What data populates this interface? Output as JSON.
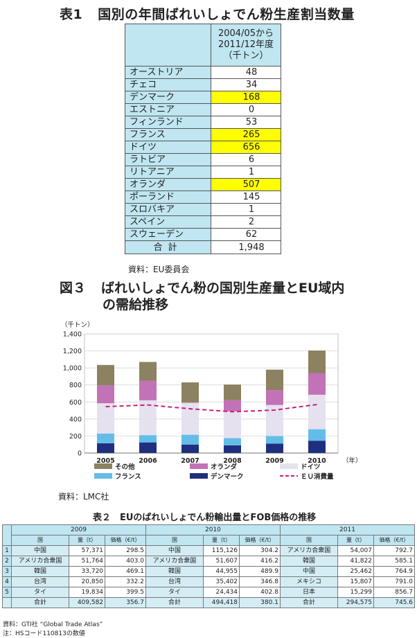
{
  "table1": {
    "number": "表1",
    "title": "国別の年間ばれいしょでん粉生産割当数量",
    "header": [
      "2004/05から",
      "2011/12年度",
      "（千トン）"
    ],
    "rows": [
      {
        "country": "オーストリア",
        "value": "48",
        "highlight": false
      },
      {
        "country": "チェコ",
        "value": "34",
        "highlight": false
      },
      {
        "country": "デンマーク",
        "value": "168",
        "highlight": true
      },
      {
        "country": "エストニア",
        "value": "0",
        "highlight": false
      },
      {
        "country": "フィンランド",
        "value": "53",
        "highlight": false
      },
      {
        "country": "フランス",
        "value": "265",
        "highlight": true
      },
      {
        "country": "ドイツ",
        "value": "656",
        "highlight": true
      },
      {
        "country": "ラトビア",
        "value": "6",
        "highlight": false
      },
      {
        "country": "リトアニア",
        "value": "1",
        "highlight": false
      },
      {
        "country": "オランダ",
        "value": "507",
        "highlight": true
      },
      {
        "country": "ポーランド",
        "value": "145",
        "highlight": false
      },
      {
        "country": "スロバキア",
        "value": "1",
        "highlight": false
      },
      {
        "country": "スペイン",
        "value": "2",
        "highlight": false
      },
      {
        "country": "スウェーデン",
        "value": "62",
        "highlight": false
      }
    ],
    "total_label": "合計",
    "total_value": "1,948",
    "source": "資料：EU委員会",
    "colors": {
      "header_bg": "#bfe6f1",
      "highlight": "#ffff00"
    }
  },
  "figure3": {
    "number": "図３",
    "title_line1": "ばれいしょでん粉の国別生産量とEU域内",
    "title_line2": "の需給推移",
    "source": "資料：LMC社"
  },
  "chart_data": {
    "type": "bar",
    "stacked": true,
    "categories": [
      "2005",
      "2006",
      "2007",
      "2008",
      "2009",
      "2010"
    ],
    "ylabel": "（千トン）",
    "xlabel": "（年）",
    "ylim": [
      0,
      1400
    ],
    "yticks": [
      "0",
      "200",
      "400",
      "600",
      "800",
      "1,000",
      "1,200",
      "1,400"
    ],
    "grid": true,
    "series": [
      {
        "name": "デンマーク",
        "color": "#1f2f7f",
        "values": [
          115,
          125,
          100,
          90,
          110,
          145
        ]
      },
      {
        "name": "フランス",
        "color": "#63bde8",
        "values": [
          115,
          85,
          115,
          85,
          90,
          135
        ]
      },
      {
        "name": "ドイツ",
        "color": "#e6e1ef",
        "values": [
          355,
          410,
          375,
          315,
          365,
          405
        ]
      },
      {
        "name": "オランダ",
        "color": "#c272b6",
        "values": [
          210,
          230,
          5,
          130,
          175,
          255
        ]
      },
      {
        "name": "その他",
        "color": "#8c8161",
        "values": [
          240,
          220,
          235,
          185,
          240,
          265
        ]
      }
    ],
    "line": {
      "name": "ＥＵ消費量",
      "color": "#cc1d7a",
      "values": [
        545,
        565,
        520,
        485,
        505,
        570
      ]
    },
    "legend": [
      {
        "name": "その他",
        "kind": "box",
        "color": "#8c8161"
      },
      {
        "name": "オランダ",
        "kind": "box",
        "color": "#c272b6"
      },
      {
        "name": "ドイツ",
        "kind": "box",
        "color": "#e6e1ef"
      },
      {
        "name": "フランス",
        "kind": "box",
        "color": "#63bde8"
      },
      {
        "name": "デンマーク",
        "kind": "box",
        "color": "#1f2f7f"
      },
      {
        "name": "ＥＵ消費量",
        "kind": "dash",
        "color": "#cc1d7a"
      }
    ]
  },
  "table2": {
    "title": "表２　EUのばれいしょでん粉輸出量とFOB価格の推移",
    "years": [
      "2009",
      "2010",
      "2011"
    ],
    "col_country": "国",
    "col_qty": "量（t）",
    "col_price": "価格（€/t）",
    "rows": [
      {
        "idx": "1",
        "y2009": [
          "中国",
          "57,371",
          "298.5"
        ],
        "y2010": [
          "中国",
          "115,126",
          "304.2"
        ],
        "y2011": [
          "アメリカ合衆国",
          "54,007",
          "792.7"
        ]
      },
      {
        "idx": "2",
        "y2009": [
          "アメリカ合衆国",
          "51,764",
          "403.0"
        ],
        "y2010": [
          "アメリカ合衆国",
          "51,607",
          "416.2"
        ],
        "y2011": [
          "韓国",
          "41,822",
          "585.1"
        ]
      },
      {
        "idx": "3",
        "y2009": [
          "韓国",
          "33,720",
          "469.1"
        ],
        "y2010": [
          "韓国",
          "44,955",
          "489.9"
        ],
        "y2011": [
          "中国",
          "25,462",
          "764.9"
        ]
      },
      {
        "idx": "4",
        "y2009": [
          "台湾",
          "20,850",
          "332.2"
        ],
        "y2010": [
          "台湾",
          "35,402",
          "346.8"
        ],
        "y2011": [
          "メキシコ",
          "15,807",
          "791.0"
        ]
      },
      {
        "idx": "5",
        "y2009": [
          "タイ",
          "19,834",
          "399.5"
        ],
        "y2010": [
          "タイ",
          "24,434",
          "402.8"
        ],
        "y2011": [
          "日本",
          "15,299",
          "856.7"
        ]
      }
    ],
    "total": {
      "label": "合計",
      "y2009": [
        "409,582",
        "356.7"
      ],
      "y2010": [
        "494,418",
        "380.1"
      ],
      "y2011": [
        "294,575",
        "745.6"
      ]
    },
    "note1": "資料：GTI社 “Global Trade Atlas”",
    "note2": "注：HSコード110813の数値"
  }
}
